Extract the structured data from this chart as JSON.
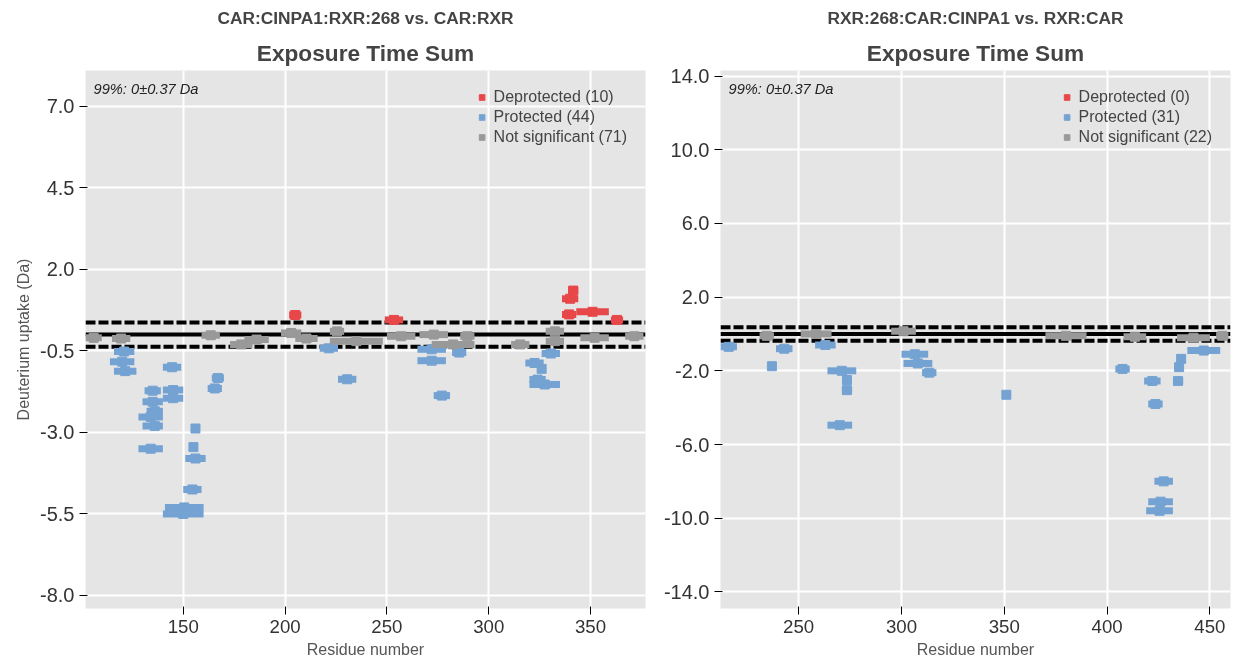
{
  "chart_data": [
    {
      "type": "scatter",
      "title": "CAR:CINPA1:RXR:268 vs. CAR:RXR",
      "subtitle": "Exposure Time Sum",
      "xlabel": "Residue number",
      "ylabel": "Deuterium uptake (Da)",
      "annotations": [
        "99%: 0±0.37 Da"
      ],
      "xlim": [
        102,
        377
      ],
      "ylim": [
        -8.4,
        8.1
      ],
      "xticks": [
        150,
        200,
        250,
        300,
        350
      ],
      "yticks": [
        {
          "value": 7,
          "label": "7.0"
        },
        {
          "value": 4.5,
          "label": "4.5"
        },
        {
          "value": 2,
          "label": "2.0"
        },
        {
          "value": -0.5,
          "label": "-0.5"
        },
        {
          "value": -3,
          "label": "-3.0"
        },
        {
          "value": -5.5,
          "label": "-5.5"
        },
        {
          "value": -8,
          "label": "-8.0"
        }
      ],
      "grid": true,
      "legend": "top right",
      "marker": "square",
      "ref_lines": [
        {
          "axis": "y",
          "value": 0,
          "line_style": "solid",
          "color": "#000000"
        },
        {
          "axis": "y",
          "value": 0.37,
          "line_style": "dashed",
          "color": "#000000"
        },
        {
          "axis": "y",
          "value": -0.37,
          "line_style": "dashed",
          "color": "#000000"
        }
      ],
      "series": [
        {
          "name": "Deprotected (10)",
          "color": "#e8474a",
          "x": [
            205,
            253.5,
            341.5,
            340,
            339.5,
            351,
            363
          ],
          "values": [
            0.6,
            0.45,
            1.35,
            1.1,
            0.62,
            0.7,
            0.45
          ],
          "xerrors": [
            [
              202,
              208
            ],
            [
              249,
              258
            ],
            [
              339,
              344
            ],
            [
              336,
              344
            ],
            [
              336,
              343
            ],
            [
              343,
              359
            ],
            [
              360,
              366
            ]
          ]
        },
        {
          "name": "Protected (44)",
          "color": "#74a3d3",
          "x": [
            121,
            120,
            121.5,
            144.5,
            167,
            165.5,
            135,
            145,
            145,
            135,
            136,
            134,
            136,
            156,
            155,
            134,
            156,
            154.5,
            150.5,
            150,
            221.5,
            230.5,
            272,
            272,
            285.5,
            277,
            330.5,
            322.5,
            326,
            324,
            327.5
          ],
          "values": [
            -0.52,
            -0.83,
            -1.12,
            -1.0,
            -1.33,
            -1.65,
            -1.72,
            -1.7,
            -1.95,
            -2.06,
            -2.35,
            -2.53,
            -2.8,
            -2.88,
            -3.45,
            -3.5,
            -3.8,
            -4.75,
            -5.3,
            -5.5,
            -0.42,
            -1.37,
            -0.45,
            -0.8,
            -0.55,
            -1.87,
            -0.58,
            -0.87,
            -1.05,
            -1.38,
            -1.53
          ],
          "xerrors": [
            [
              116,
              126
            ],
            [
              114,
              126
            ],
            [
              116,
              127
            ],
            [
              140,
              149
            ],
            [
              164,
              170
            ],
            [
              162,
              169
            ],
            [
              131,
              139
            ],
            [
              140,
              150
            ],
            [
              140,
              150
            ],
            [
              130,
              140
            ],
            [
              132,
              140
            ],
            [
              128,
              140
            ],
            [
              130,
              140
            ],
            [
              154,
              158
            ],
            [
              153,
              157
            ],
            [
              128,
              140
            ],
            [
              151,
              161
            ],
            [
              150,
              159
            ],
            [
              141,
              160
            ],
            [
              140,
              160
            ],
            [
              217,
              226
            ],
            [
              226,
              235
            ],
            [
              265,
              279
            ],
            [
              265,
              279
            ],
            [
              282,
              289
            ],
            [
              273,
              281
            ],
            [
              326,
              335
            ],
            [
              318,
              327
            ],
            [
              324,
              328
            ],
            [
              320,
              328
            ],
            [
              320,
              335
            ]
          ]
        },
        {
          "name": "Not significant (71)",
          "color": "#999999",
          "x": [
            106,
            119.5,
            163.5,
            178.5,
            186,
            203,
            210.5,
            225.5,
            235,
            257,
            273,
            282.5,
            289.5,
            315.5,
            332.5,
            332.5,
            352,
            371.5
          ],
          "values": [
            -0.1,
            -0.12,
            -0.02,
            -0.3,
            -0.15,
            0.05,
            -0.12,
            0.1,
            -0.2,
            -0.05,
            0,
            -0.3,
            -0.05,
            -0.3,
            0.1,
            -0.2,
            -0.1,
            -0.05
          ],
          "xerrors": [
            [
              102,
              110
            ],
            [
              115,
              124
            ],
            [
              159,
              168
            ],
            [
              173,
              184
            ],
            [
              180,
              192
            ],
            [
              198,
              208
            ],
            [
              205,
              216
            ],
            [
              222,
              229
            ],
            [
              222,
              248
            ],
            [
              250,
              264
            ],
            [
              266,
              280
            ],
            [
              272,
              293
            ],
            [
              286,
              293
            ],
            [
              311,
              320
            ],
            [
              328,
              337
            ],
            [
              328,
              337
            ],
            [
              345,
              359
            ],
            [
              367,
              376
            ]
          ]
        }
      ]
    },
    {
      "type": "scatter",
      "title": "RXR:268:CAR:CINPA1 vs. RXR:CAR",
      "subtitle": "Exposure Time Sum",
      "xlabel": "Residue number",
      "annotations": [
        "99%: 0±0.37 Da"
      ],
      "xlim": [
        212,
        460
      ],
      "ylim": [
        -14.9,
        14.3
      ],
      "xticks": [
        250,
        300,
        350,
        400,
        450
      ],
      "yticks": [
        {
          "value": 14,
          "label": "14.0"
        },
        {
          "value": 10,
          "label": "10.0"
        },
        {
          "value": 6,
          "label": "6.0"
        },
        {
          "value": 2,
          "label": "2.0"
        },
        {
          "value": -2,
          "label": "-2.0"
        },
        {
          "value": -6,
          "label": "-6.0"
        },
        {
          "value": -10,
          "label": "-10.0"
        },
        {
          "value": -14,
          "label": "-14.0"
        }
      ],
      "grid": true,
      "legend": "top right",
      "marker": "square",
      "ref_lines": [
        {
          "axis": "y",
          "value": 0,
          "line_style": "solid",
          "color": "#000000"
        },
        {
          "axis": "y",
          "value": 0.37,
          "line_style": "dashed",
          "color": "#000000"
        },
        {
          "axis": "y",
          "value": -0.37,
          "line_style": "dashed",
          "color": "#000000"
        }
      ],
      "series": [
        {
          "name": "Deprotected (0)",
          "color": "#e8474a"
        },
        {
          "name": "Protected (31)",
          "color": "#74a3d3",
          "x": [
            216,
            243,
            237,
            263,
            271,
            273.5,
            273.5,
            270,
            306.5,
            308,
            313.5,
            351,
            407.5,
            422,
            423.5,
            434.5,
            435,
            436,
            447,
            427.5,
            426,
            425.5
          ],
          "values": [
            -0.7,
            -0.8,
            -1.75,
            -0.6,
            -2.0,
            -2.5,
            -3.05,
            -4.95,
            -1.1,
            -1.6,
            -2.1,
            -3.3,
            -1.9,
            -2.55,
            -3.8,
            -2.55,
            -1.8,
            -1.35,
            -0.9,
            -8.0,
            -9.1,
            -9.6
          ],
          "xerrors": [
            [
              212,
              220
            ],
            [
              239,
              247
            ],
            [
              235,
              239
            ],
            [
              258,
              268
            ],
            [
              264,
              278
            ],
            [
              272,
              275
            ],
            [
              271,
              276
            ],
            [
              264,
              276
            ],
            [
              300,
              313
            ],
            [
              301,
              315
            ],
            [
              310,
              317
            ],
            [
              349,
              353
            ],
            [
              404,
              411
            ],
            [
              418,
              426
            ],
            [
              420,
              427
            ],
            [
              432,
              437
            ],
            [
              433,
              437
            ],
            [
              434,
              438
            ],
            [
              439,
              455
            ],
            [
              423,
              432
            ],
            [
              420,
              432
            ],
            [
              419,
              432
            ]
          ]
        },
        {
          "name": "Not significant (22)",
          "color": "#999999",
          "x": [
            234.5,
            258.5,
            301,
            380,
            413.5,
            442,
            456
          ],
          "values": [
            -0.1,
            0,
            0.15,
            -0.1,
            -0.15,
            -0.2,
            -0.1
          ],
          "xerrors": [
            [
              231,
              238
            ],
            [
              251,
              266
            ],
            [
              295,
              307
            ],
            [
              370,
              390
            ],
            [
              408,
              419
            ],
            [
              434,
              450
            ],
            [
              453,
              459
            ]
          ]
        }
      ]
    }
  ]
}
